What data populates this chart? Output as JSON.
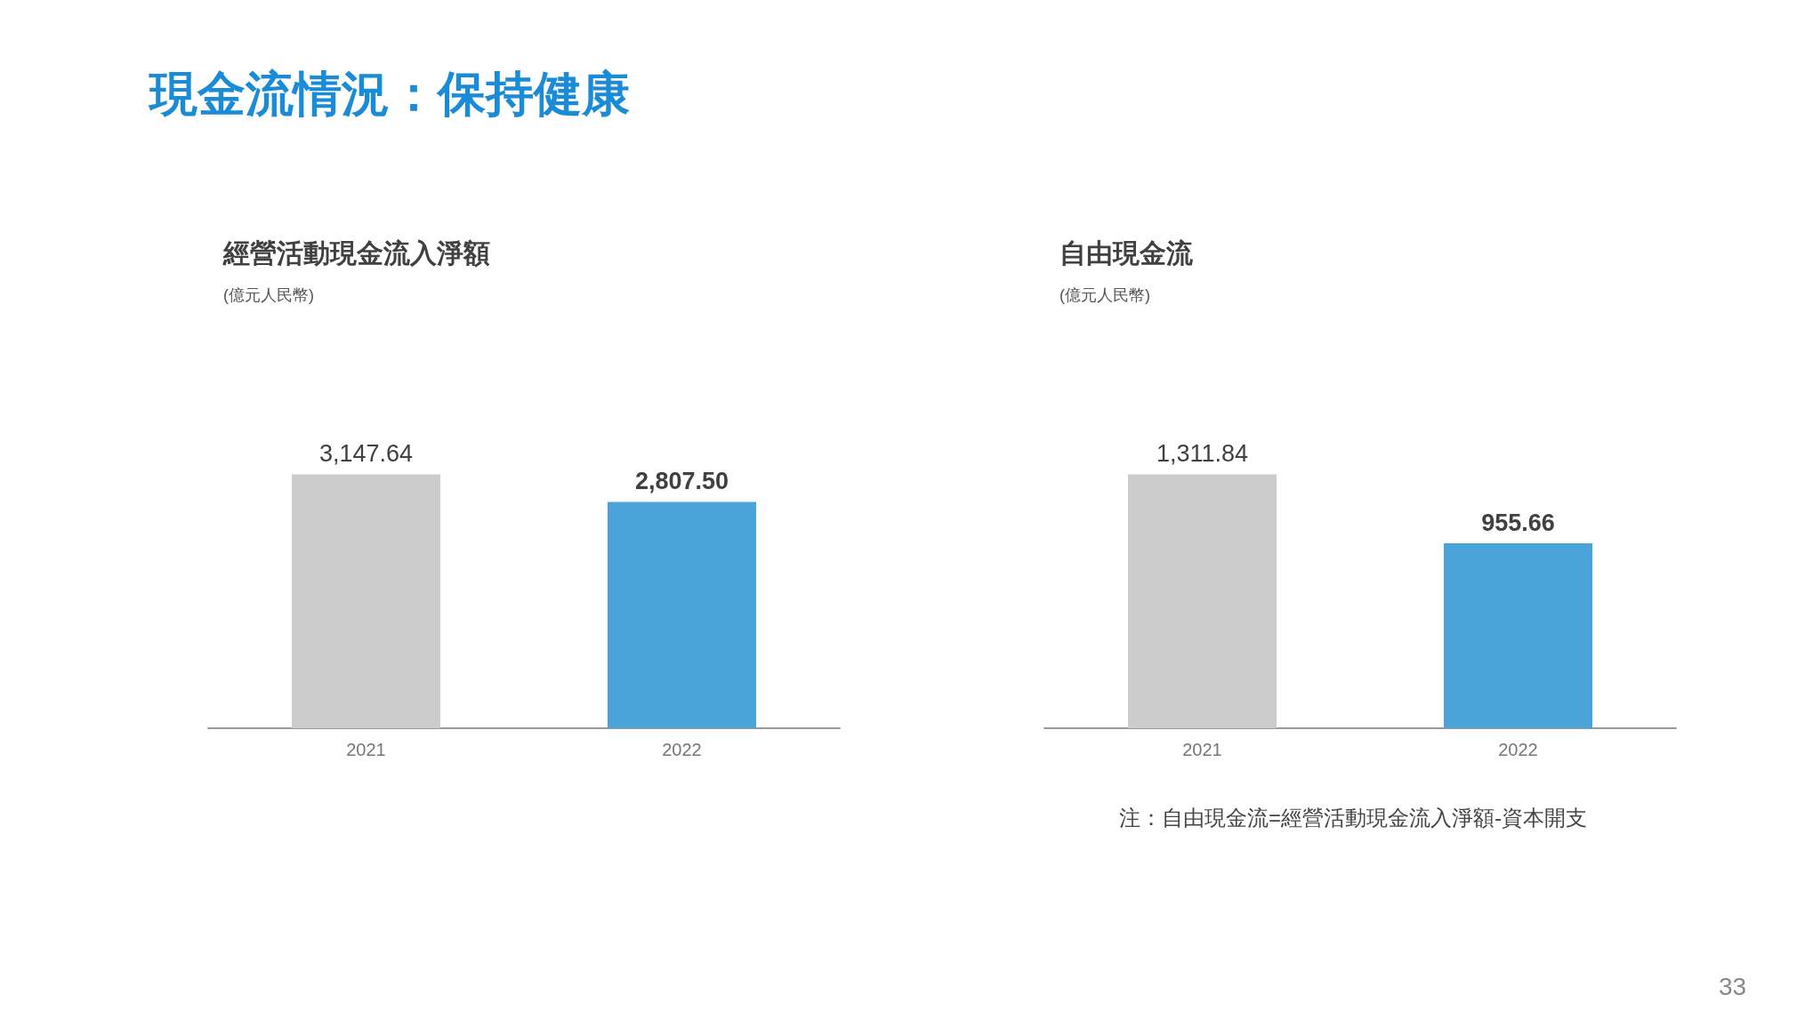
{
  "chart_data": [
    {
      "type": "bar",
      "title": "經營活動現金流入淨額",
      "subtitle": "(億元人民幣)",
      "categories": [
        "2021",
        "2022"
      ],
      "values": [
        3147.64,
        2807.5
      ],
      "colors": [
        "#cccccc",
        "#4aa3d9"
      ],
      "value_labels": [
        "3,147.64",
        "2,807.50"
      ],
      "annotations": [
        "現金流情況：保持健康"
      ]
    },
    {
      "type": "bar",
      "title": "自由現金流",
      "subtitle": "(億元人民幣)",
      "categories": [
        "2021",
        "2022"
      ],
      "values": [
        1311.84,
        955.66
      ],
      "colors": [
        "#cccccc",
        "#4aa3d9"
      ],
      "value_labels": [
        "1,311.84",
        "955.66"
      ],
      "annotations": [
        "注：自由現金流=經營活動現金流入淨額-資本開支",
        "33"
      ]
    }
  ]
}
